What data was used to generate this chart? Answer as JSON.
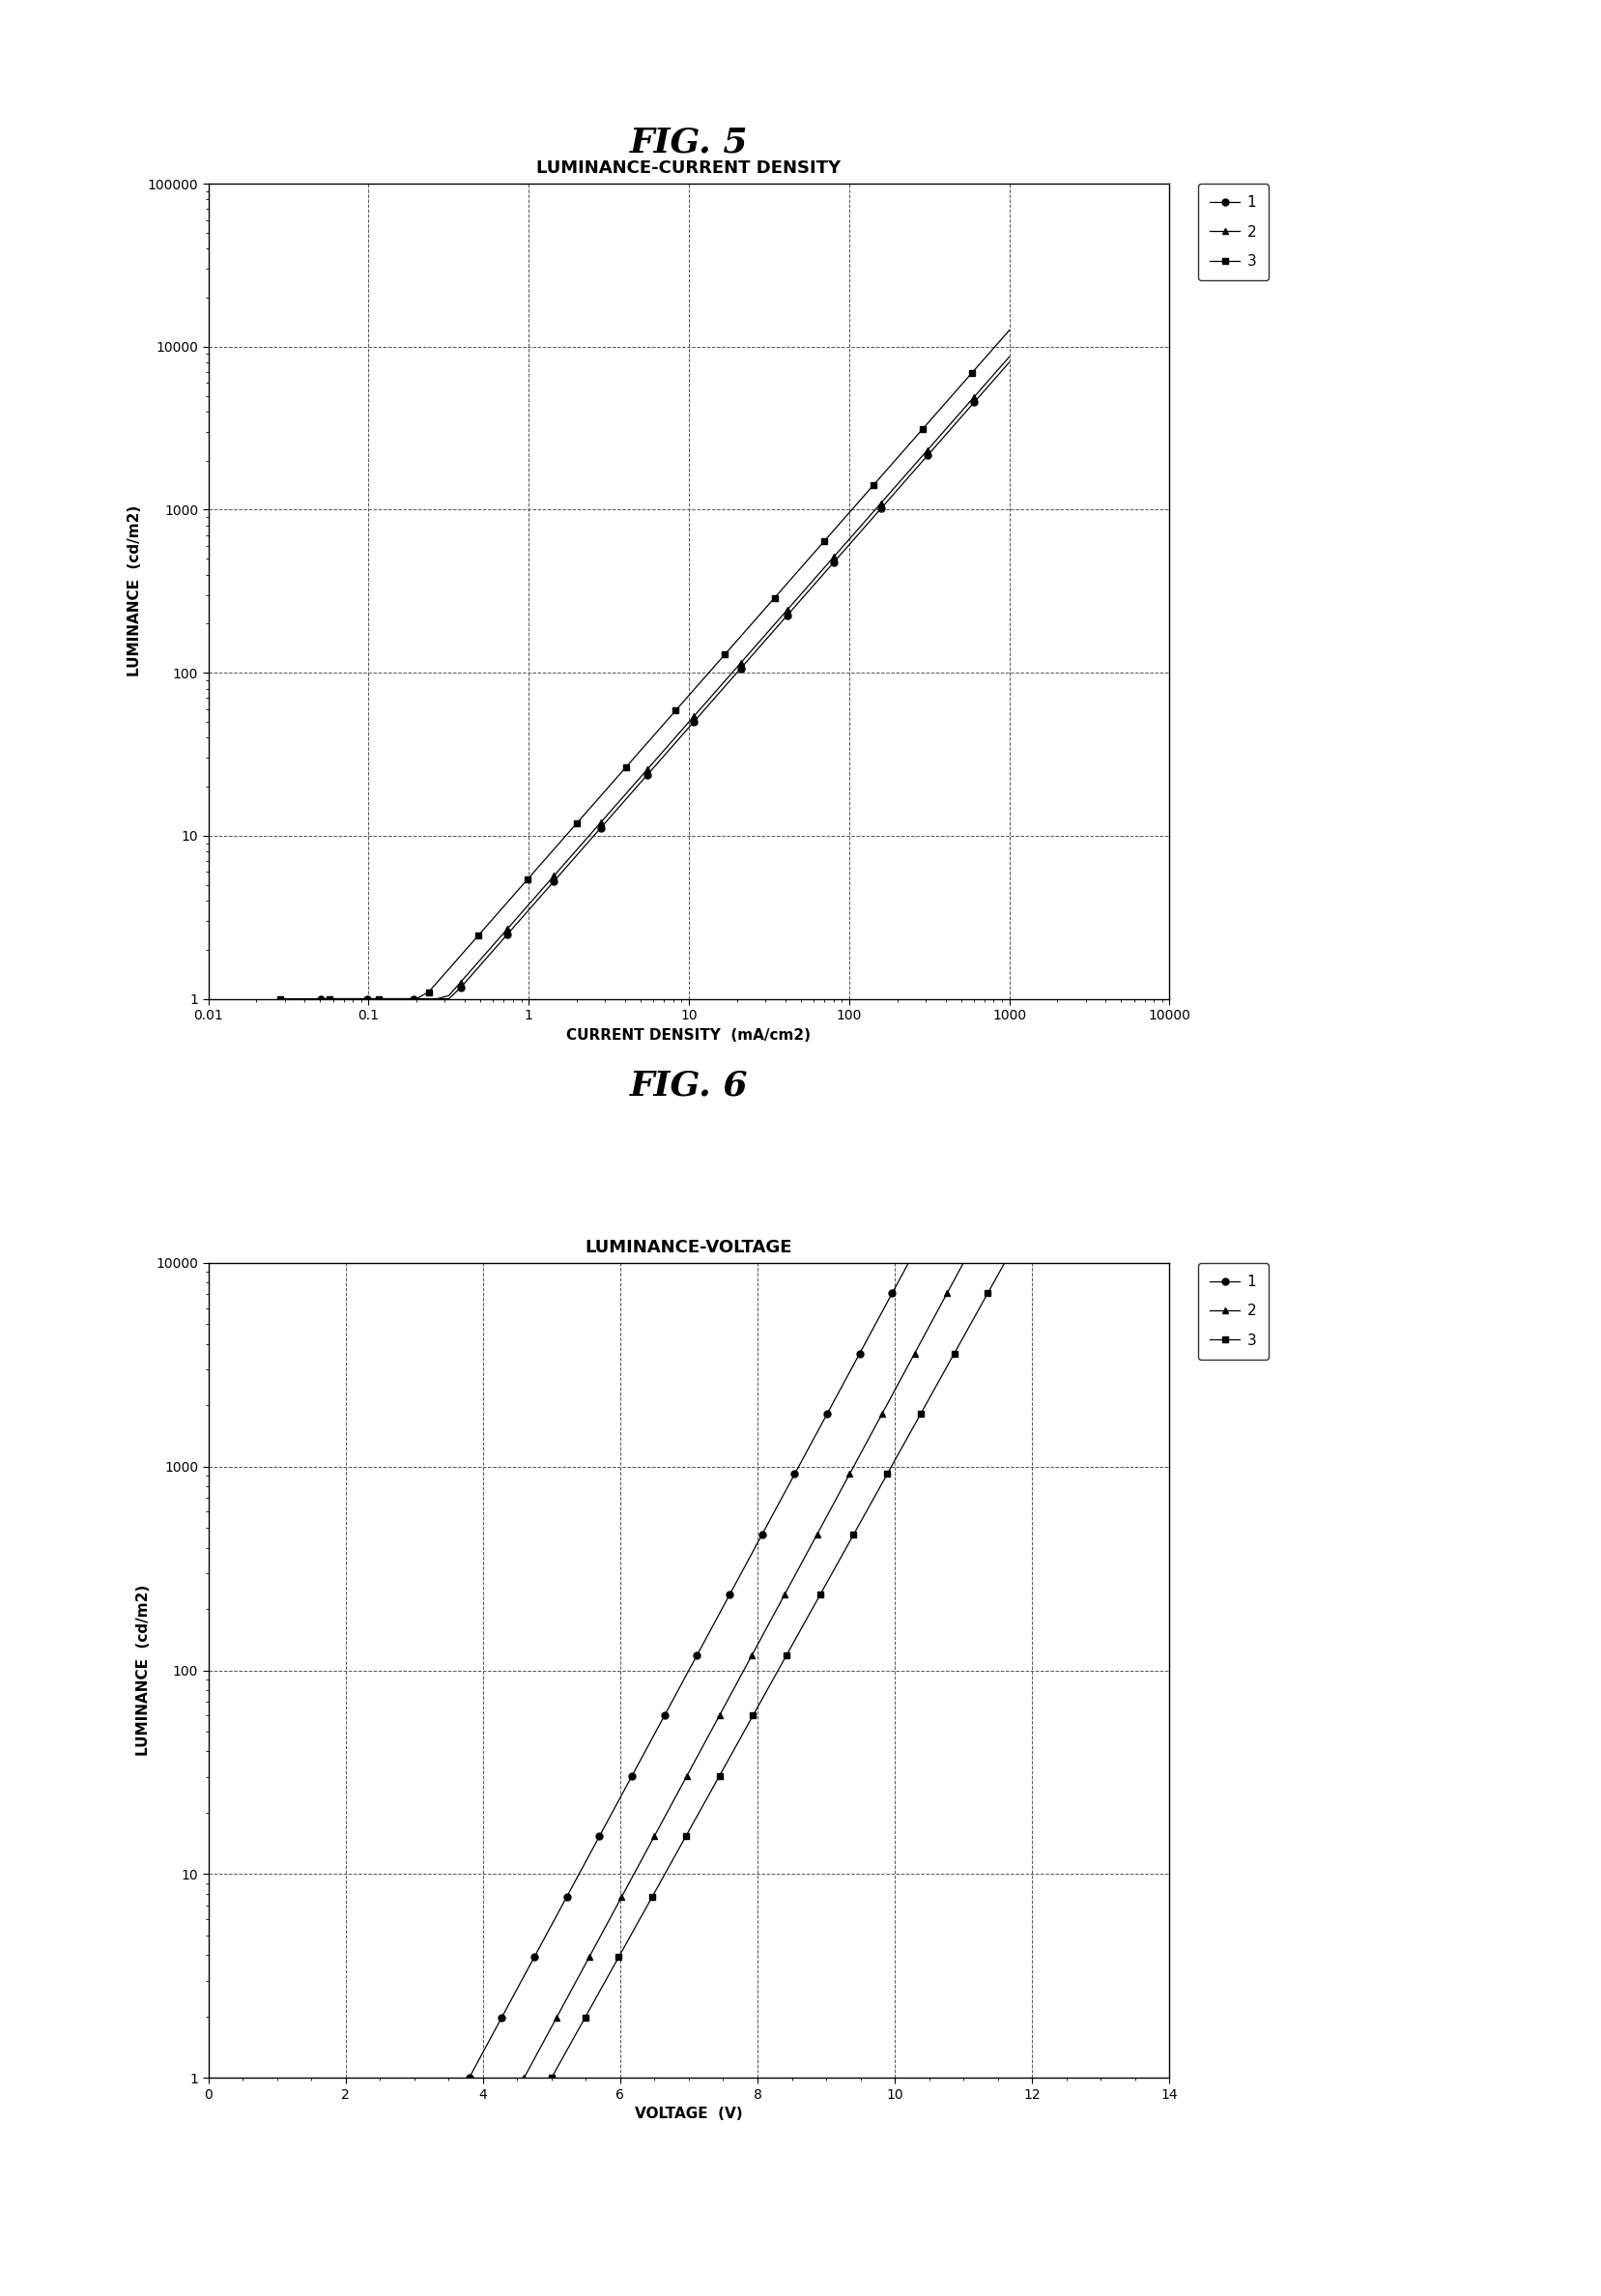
{
  "fig5_title": "FIG. 5",
  "fig5_chart_title": "LUMINANCE-CURRENT DENSITY",
  "fig5_xlabel": "CURRENT DENSITY  (mA/cm2)",
  "fig5_ylabel": "LUMINANCE  (cd/m2)",
  "fig5_xlim_log": [
    -2,
    4
  ],
  "fig5_ylim": [
    1,
    100000
  ],
  "fig6_title": "FIG. 6",
  "fig6_chart_title": "LUMINANCE-VOLTAGE",
  "fig6_xlabel": "VOLTAGE  (V)",
  "fig6_ylabel": "LUMINANCE  (cd/m2)",
  "fig6_xlim": [
    0,
    14
  ],
  "fig6_ylim": [
    1,
    10000
  ],
  "legend_labels": [
    "1",
    "2",
    "3"
  ],
  "background_color": "#ffffff",
  "fig_title_fontsize": 26,
  "chart_title_fontsize": 13,
  "axis_label_fontsize": 11,
  "tick_fontsize": 10,
  "legend_fontsize": 11
}
